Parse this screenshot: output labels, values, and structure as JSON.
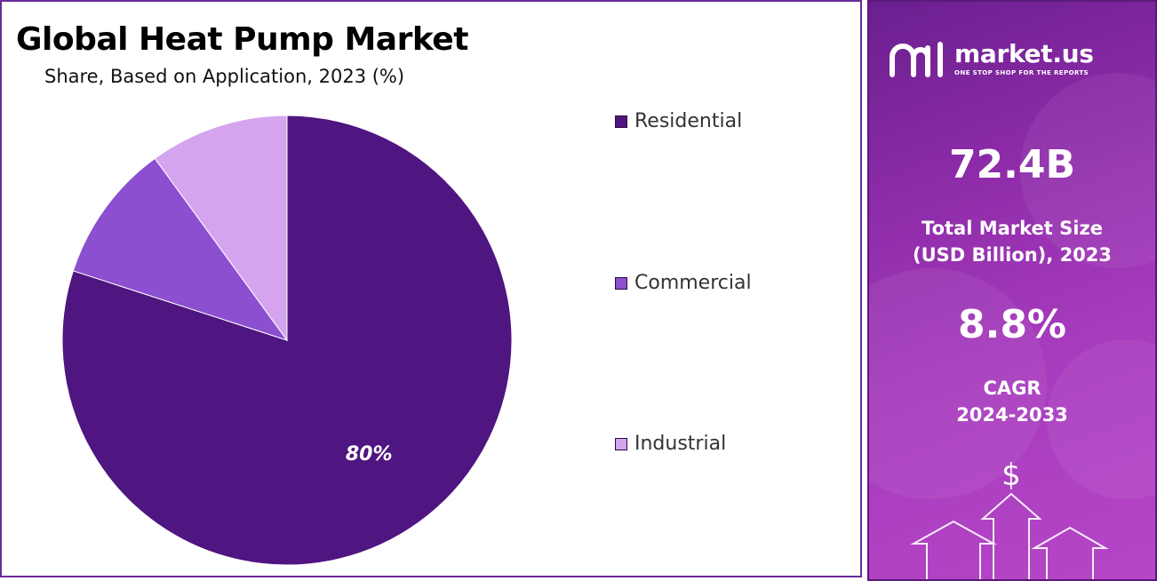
{
  "header": {
    "title": "Global Heat Pump Market",
    "subtitle": "Share, Based on Application, 2023 (%)"
  },
  "chart_data": {
    "type": "pie",
    "title": "Global Heat Pump Market",
    "subtitle": "Share, Based on Application, 2023 (%)",
    "categories": [
      "Residential",
      "Commercial",
      "Industrial"
    ],
    "values": [
      80,
      10,
      10
    ],
    "colors": [
      "#4f1580",
      "#8b4fd0",
      "#d4a5ee"
    ],
    "data_labels": [
      "80%",
      "",
      ""
    ],
    "legend_position": "right"
  },
  "sidebar": {
    "brand_name": "market.us",
    "brand_tagline": "ONE STOP SHOP FOR THE REPORTS",
    "market_size_value": "72.4B",
    "market_size_label_line1": "Total Market Size",
    "market_size_label_line2": "(USD Billion), 2023",
    "cagr_value": "8.8%",
    "cagr_label_line1": "CAGR",
    "cagr_label_line2": "2024-2033",
    "dollar_symbol": "$",
    "icons": [
      "market-us-logo-icon",
      "dollar-icon",
      "up-arrow-icon"
    ],
    "colors": {
      "panel_start": "#6a1f8f",
      "panel_end": "#b746c8"
    }
  }
}
